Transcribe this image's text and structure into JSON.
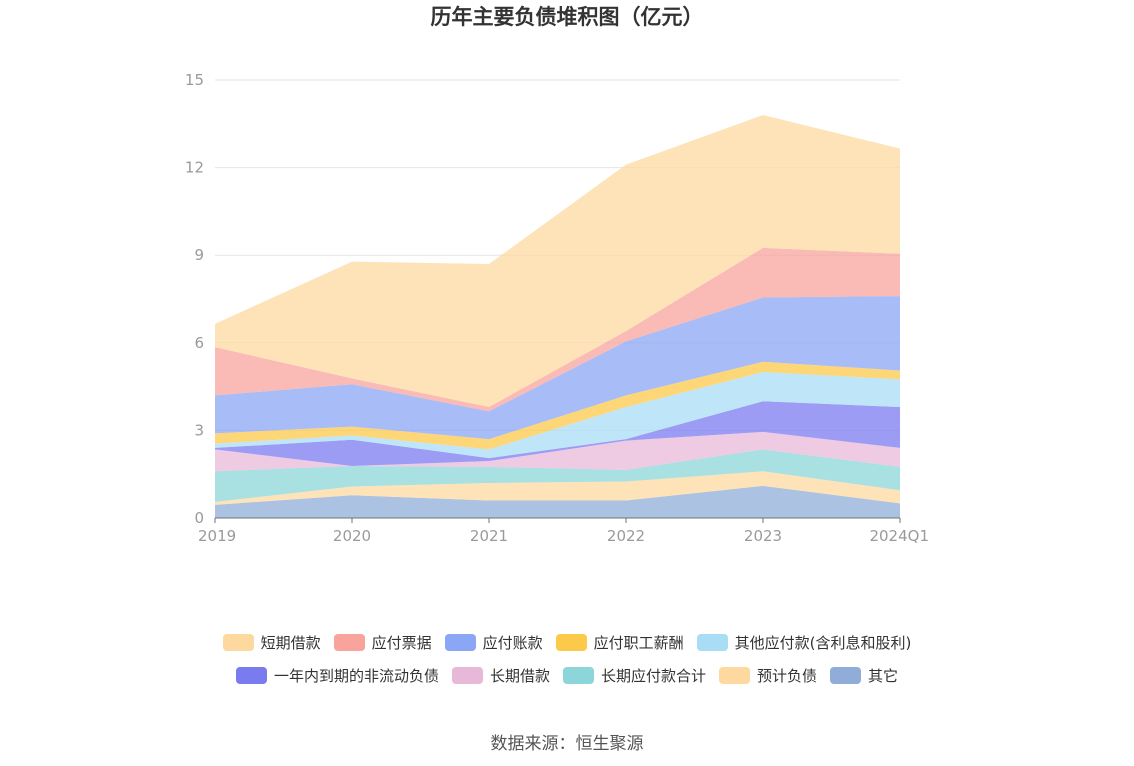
{
  "chart_data": {
    "type": "area",
    "stacked": true,
    "title": "历年主要负债堆积图（亿元）",
    "categories": [
      "2019",
      "2020",
      "2021",
      "2022",
      "2023",
      "2024Q1"
    ],
    "ylim": [
      0,
      15
    ],
    "yticks": [
      0,
      3,
      6,
      9,
      12,
      15
    ],
    "grid": true,
    "legend_position": "bottom",
    "series": [
      {
        "name": "其它",
        "color": "#8fadd8",
        "values": [
          0.45,
          0.78,
          0.6,
          0.6,
          1.1,
          0.5
        ]
      },
      {
        "name": "预计负债",
        "color": "#fdd9a0",
        "values": [
          0.1,
          0.3,
          0.6,
          0.65,
          0.5,
          0.45
        ]
      },
      {
        "name": "长期应付款合计",
        "color": "#8cd5d8",
        "values": [
          1.05,
          0.7,
          0.55,
          0.4,
          0.75,
          0.8
        ]
      },
      {
        "name": "长期借款",
        "color": "#e8b8d9",
        "values": [
          0.75,
          0.0,
          0.2,
          1.0,
          0.6,
          0.65
        ]
      },
      {
        "name": "一年内到期的非流动负债",
        "color": "#7b7bf0",
        "values": [
          0.05,
          0.9,
          0.1,
          0.05,
          1.05,
          1.4
        ]
      },
      {
        "name": "其他应付款(含利息和股利)",
        "color": "#a9dcf5",
        "values": [
          0.15,
          0.15,
          0.3,
          1.1,
          1.0,
          0.95
        ]
      },
      {
        "name": "应付职工薪酬",
        "color": "#fcc94a",
        "values": [
          0.35,
          0.3,
          0.35,
          0.4,
          0.35,
          0.3
        ]
      },
      {
        "name": "应付账款",
        "color": "#8ba6f4",
        "values": [
          1.3,
          1.45,
          0.95,
          1.85,
          2.2,
          2.55
        ]
      },
      {
        "name": "应付票据",
        "color": "#f8a39c",
        "values": [
          1.65,
          0.2,
          0.15,
          0.35,
          1.7,
          1.45
        ]
      },
      {
        "name": "短期借款",
        "color": "#fdd9a0",
        "values": [
          0.8,
          4.0,
          4.9,
          5.7,
          4.55,
          3.6
        ]
      }
    ],
    "legend_order": [
      "短期借款",
      "应付票据",
      "应付账款",
      "应付职工薪酬",
      "其他应付款(含利息和股利)",
      "一年内到期的非流动负债",
      "长期借款",
      "长期应付款合计",
      "预计负债",
      "其它"
    ]
  },
  "source": "数据来源：恒生聚源"
}
